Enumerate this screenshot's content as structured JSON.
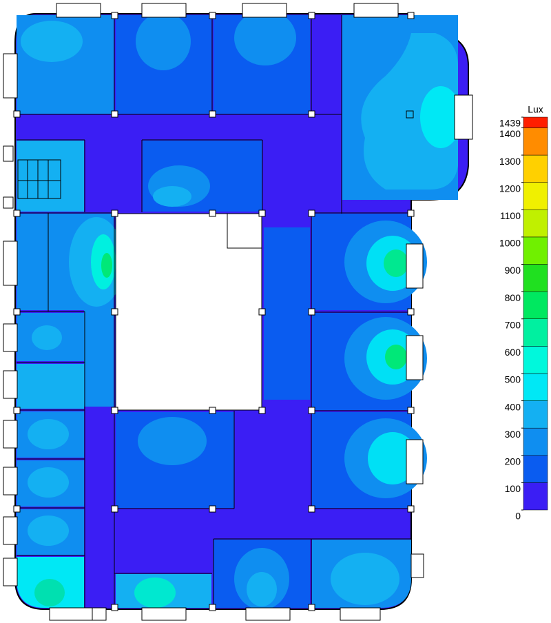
{
  "legend": {
    "title": "Lux",
    "levels": [
      0,
      100,
      200,
      300,
      400,
      500,
      600,
      700,
      800,
      900,
      1000,
      1100,
      1200,
      1300,
      1400,
      1439
    ],
    "colors": [
      "#3b1ef4",
      "#0a5cf0",
      "#0f8ef0",
      "#14b0f2",
      "#00e8f5",
      "#00f8dc",
      "#00f0a0",
      "#00e860",
      "#20e020",
      "#70f000",
      "#c0f000",
      "#f0f000",
      "#ffd000",
      "#ff8c00",
      "#ff1e00"
    ],
    "scale_range": [
      0,
      1439
    ]
  }
}
